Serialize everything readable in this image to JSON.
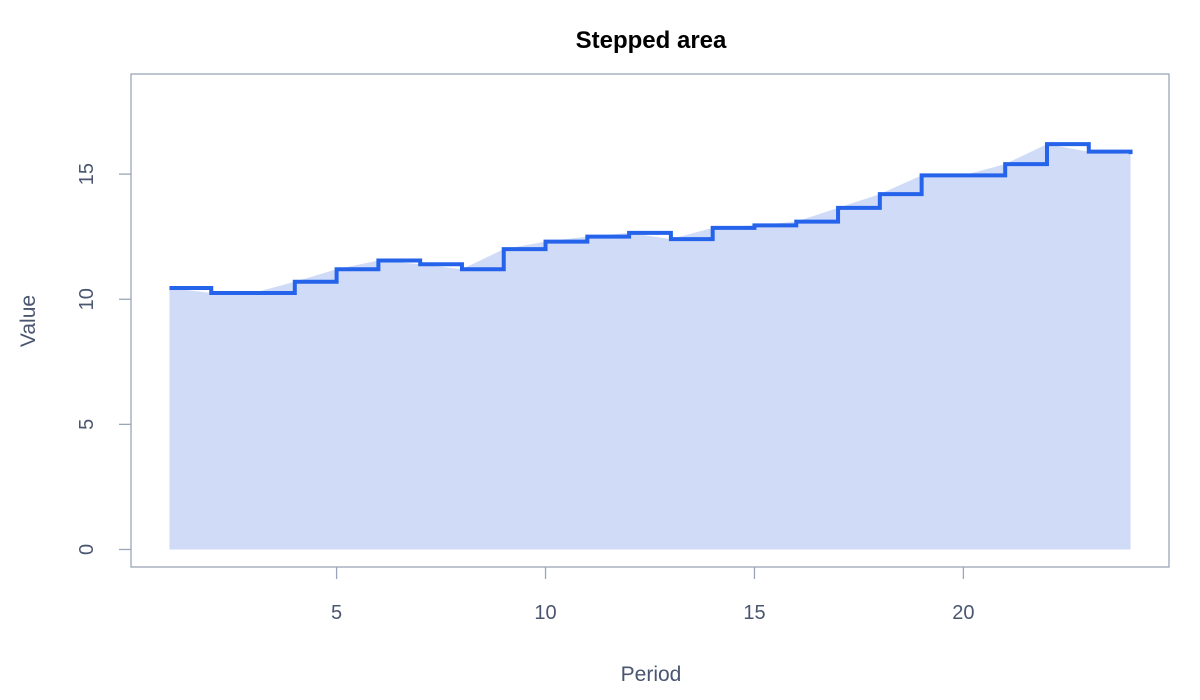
{
  "chart_data": {
    "type": "area",
    "title": "Stepped area",
    "xlabel": "Period",
    "ylabel": "Value",
    "xlim": [
      0.08,
      24.92
    ],
    "ylim": [
      -0.7,
      19.0
    ],
    "xticks": [
      5,
      10,
      15,
      20
    ],
    "yticks": [
      0,
      5,
      10,
      15
    ],
    "grid": false,
    "series": [
      {
        "step": "post",
        "x": [
          1,
          2,
          3,
          4,
          5,
          6,
          7,
          8,
          9,
          10,
          11,
          12,
          13,
          14,
          15,
          16,
          17,
          18,
          19,
          20,
          21,
          22,
          23,
          24
        ],
        "values": [
          10.45,
          10.25,
          10.25,
          10.7,
          11.2,
          11.55,
          11.4,
          11.2,
          12.0,
          12.3,
          12.5,
          12.65,
          12.4,
          12.85,
          12.95,
          13.1,
          13.65,
          14.2,
          14.95,
          14.95,
          15.4,
          16.2,
          15.9,
          15.8
        ]
      }
    ],
    "colors": {
      "line": "#2563eb",
      "fill": "#d0dbf7",
      "frame": "#9aa6b8",
      "text": "#4a5670"
    }
  }
}
